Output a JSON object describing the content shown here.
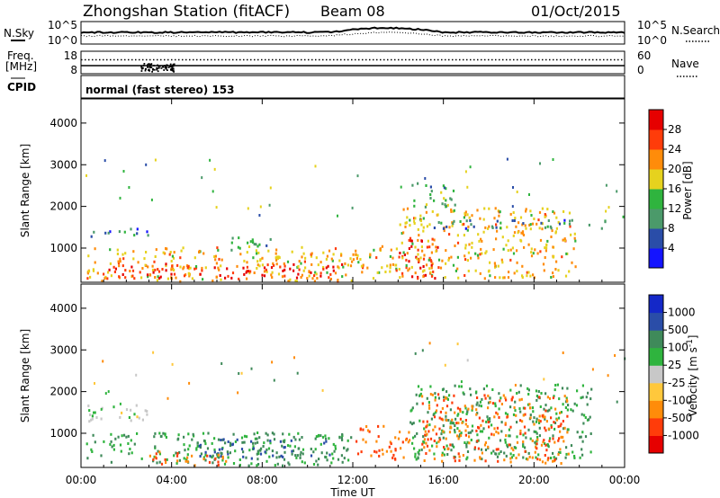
{
  "header": {
    "station": "Zhongshan Station (fitACF)",
    "beam": "Beam 08",
    "date": "01/Oct/2015"
  },
  "noise_panel": {
    "left_label": "N.Sky",
    "right_label": "N.Search",
    "left_ticks": [
      "10^5",
      "10^0"
    ],
    "right_ticks": [
      "10^5",
      "10^0"
    ]
  },
  "freq_panel": {
    "left_label_1": "Freq.",
    "left_label_2": "[MHz]",
    "right_label": "Nave",
    "left_ticks": [
      "18",
      "8"
    ],
    "right_ticks": [
      "60",
      "0"
    ]
  },
  "cpid": {
    "label": "CPID",
    "mode": "normal (fast stereo) 153"
  },
  "chart_data": [
    {
      "type": "heatmap",
      "title": "Power",
      "ylabel": "Slant Range [km]",
      "colorbar_label": "Power [dB]",
      "x_ticks": [
        "00:00",
        "04:00",
        "08:00",
        "12:00",
        "16:00",
        "20:00",
        "00:00"
      ],
      "y_ticks": [
        1000,
        2000,
        3000,
        4000
      ],
      "ylim": [
        180,
        4580
      ],
      "xlim_hours": [
        0,
        24
      ],
      "colorbar_ticks": [
        4,
        8,
        12,
        16,
        20,
        24,
        28
      ],
      "colorbar_colors": [
        "#1414ff",
        "#2a4da8",
        "#4b9a6a",
        "#2fb43e",
        "#e6d21e",
        "#ff8c0a",
        "#ff3c0a",
        "#e60000"
      ],
      "features": [
        {
          "t": [
            0.2,
            12.2
          ],
          "r": [
            220,
            1050
          ],
          "level": 20
        },
        {
          "t": [
            1.0,
            11.8
          ],
          "r": [
            300,
            650
          ],
          "level": 28
        },
        {
          "t": [
            0.1,
            3.0
          ],
          "r": [
            1300,
            1500
          ],
          "level": 8
        },
        {
          "t": [
            6.5,
            8.5
          ],
          "r": [
            900,
            1300
          ],
          "level": 12
        },
        {
          "t": [
            12.2,
            14.0
          ],
          "r": [
            250,
            1100
          ],
          "level": 20
        },
        {
          "t": [
            14.0,
            15.8
          ],
          "r": [
            300,
            1300
          ],
          "level": 28
        },
        {
          "t": [
            14.0,
            21.8
          ],
          "r": [
            300,
            2000
          ],
          "level": 20
        },
        {
          "t": [
            15.5,
            23.5
          ],
          "r": [
            1500,
            1700
          ],
          "level": 8
        },
        {
          "t": [
            14.5,
            16.5
          ],
          "r": [
            2000,
            2600
          ],
          "level": 12
        }
      ]
    },
    {
      "type": "heatmap",
      "title": "Velocity",
      "ylabel": "Slant Range [km]",
      "colorbar_label": "Velocity [m s^-1]",
      "x_ticks": [
        "00:00",
        "04:00",
        "08:00",
        "12:00",
        "16:00",
        "20:00",
        "00:00"
      ],
      "y_ticks": [
        1000,
        2000,
        3000,
        4000
      ],
      "ylim": [
        180,
        4580
      ],
      "xlim_hours": [
        0,
        24
      ],
      "colorbar_ticks": [
        1000,
        500,
        100,
        25,
        -25,
        -100,
        -500,
        -1000
      ],
      "colorbar_colors": [
        "#1428c8",
        "#2a4da8",
        "#3f8a5a",
        "#2fb43e",
        "#c8c8c8",
        "#ffc83c",
        "#ff8c0a",
        "#ff3c0a",
        "#e60000"
      ],
      "features": [
        {
          "t": [
            0.2,
            12.0
          ],
          "r": [
            250,
            1050
          ],
          "level": 100
        },
        {
          "t": [
            5.0,
            11.5
          ],
          "r": [
            400,
            900
          ],
          "level": 500
        },
        {
          "t": [
            3.0,
            6.5
          ],
          "r": [
            250,
            600
          ],
          "level": -500
        },
        {
          "t": [
            0.0,
            3.0
          ],
          "r": [
            1300,
            1700
          ],
          "level": 0
        },
        {
          "t": [
            12.0,
            14.5
          ],
          "r": [
            400,
            1200
          ],
          "level": -500
        },
        {
          "t": [
            14.5,
            22.5
          ],
          "r": [
            400,
            2200
          ],
          "level": 100
        },
        {
          "t": [
            15.0,
            21.5
          ],
          "r": [
            300,
            2000
          ],
          "level": -500
        }
      ]
    }
  ],
  "x_axis_label": "Time UT"
}
